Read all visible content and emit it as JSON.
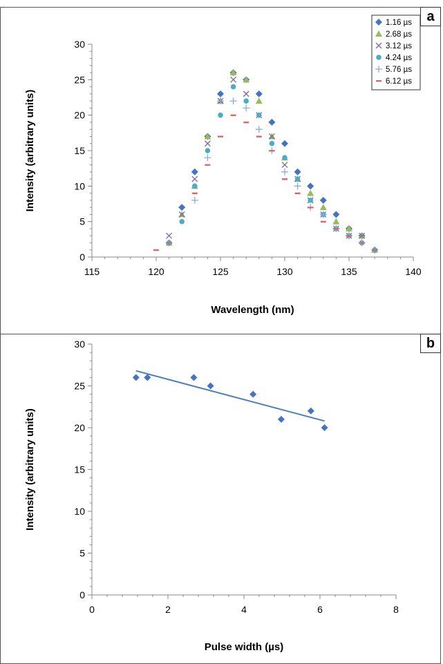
{
  "chart_data": [
    {
      "panel_label": "a",
      "type": "scatter",
      "xlabel": "Wavelength (nm)",
      "ylabel": "Intensity (arbitrary units)",
      "xlim": [
        115,
        140
      ],
      "ylim": [
        0,
        30
      ],
      "xticks": [
        115,
        120,
        125,
        130,
        135,
        140
      ],
      "yticks": [
        0,
        5,
        10,
        15,
        20,
        25,
        30
      ],
      "legend_position": "top-right",
      "series": [
        {
          "name": "1.16 µs",
          "color": "#4472c4",
          "marker": "diamond",
          "x": [
            121,
            122,
            123,
            124,
            125,
            126,
            127,
            128,
            129,
            130,
            131,
            132,
            133,
            134,
            135,
            136,
            137
          ],
          "y": [
            2,
            7,
            12,
            17,
            23,
            26,
            25,
            23,
            19,
            16,
            12,
            10,
            8,
            6,
            4,
            3,
            1
          ]
        },
        {
          "name": "2.68 µs",
          "color": "#9bbb59",
          "marker": "triangle",
          "x": [
            121,
            122,
            123,
            124,
            125,
            126,
            127,
            128,
            129,
            130,
            131,
            132,
            133,
            134,
            135,
            136,
            137
          ],
          "y": [
            2,
            6,
            10,
            17,
            22,
            26,
            25,
            22,
            17,
            14,
            11,
            9,
            7,
            5,
            4,
            3,
            1
          ]
        },
        {
          "name": "3.12 µs",
          "color": "#8064a2",
          "marker": "x",
          "x": [
            121,
            122,
            123,
            124,
            125,
            126,
            127,
            128,
            129,
            130,
            131,
            132,
            133,
            134,
            135,
            136
          ],
          "y": [
            3,
            6,
            11,
            16,
            22,
            25,
            23,
            20,
            17,
            13,
            11,
            8,
            6,
            4,
            3,
            3
          ]
        },
        {
          "name": "4.24 µs",
          "color": "#4bacc6",
          "marker": "circle",
          "x": [
            121,
            122,
            123,
            124,
            125,
            126,
            127,
            128,
            129,
            130,
            131,
            132,
            133,
            134,
            135,
            136,
            137
          ],
          "y": [
            2,
            5,
            10,
            15,
            20,
            24,
            22,
            20,
            16,
            14,
            11,
            8,
            6,
            4,
            3,
            2,
            1
          ]
        },
        {
          "name": "5.76 µs",
          "color": "#8ea9db",
          "marker": "plus",
          "x": [
            123,
            124,
            125,
            126,
            127,
            128,
            129,
            130,
            131,
            132,
            133,
            134,
            135,
            136
          ],
          "y": [
            8,
            14,
            22,
            22,
            21,
            18,
            15,
            12,
            10,
            7,
            6,
            4,
            3,
            2
          ]
        },
        {
          "name": "6.12 µs",
          "color": "#e06666",
          "marker": "dash",
          "x": [
            120,
            121,
            123,
            124,
            125,
            126,
            127,
            128,
            129,
            130,
            131,
            132,
            133,
            134,
            135,
            136,
            137
          ],
          "y": [
            1,
            2,
            9,
            13,
            17,
            20,
            19,
            17,
            15,
            11,
            9,
            7,
            5,
            4,
            3,
            2,
            1
          ]
        }
      ]
    },
    {
      "panel_label": "b",
      "type": "scatter",
      "xlabel": "Pulse width (µs)",
      "ylabel": "Intensity (arbitrary units)",
      "xlim": [
        0,
        8
      ],
      "ylim": [
        0,
        30
      ],
      "xticks": [
        0,
        2,
        4,
        6,
        8
      ],
      "yticks": [
        0,
        5,
        10,
        15,
        20,
        25,
        30
      ],
      "series": [
        {
          "color": "#4472c4",
          "marker": "diamond",
          "x": [
            1.16,
            1.46,
            2.68,
            3.12,
            4.24,
            4.98,
            5.76,
            6.12
          ],
          "y": [
            26,
            26,
            26,
            25,
            24,
            21,
            22,
            20
          ]
        }
      ],
      "trendline": {
        "type": "linear",
        "color": "#4a7ebb",
        "x": [
          1.16,
          6.12
        ],
        "y": [
          26.8,
          20.8
        ]
      }
    }
  ]
}
